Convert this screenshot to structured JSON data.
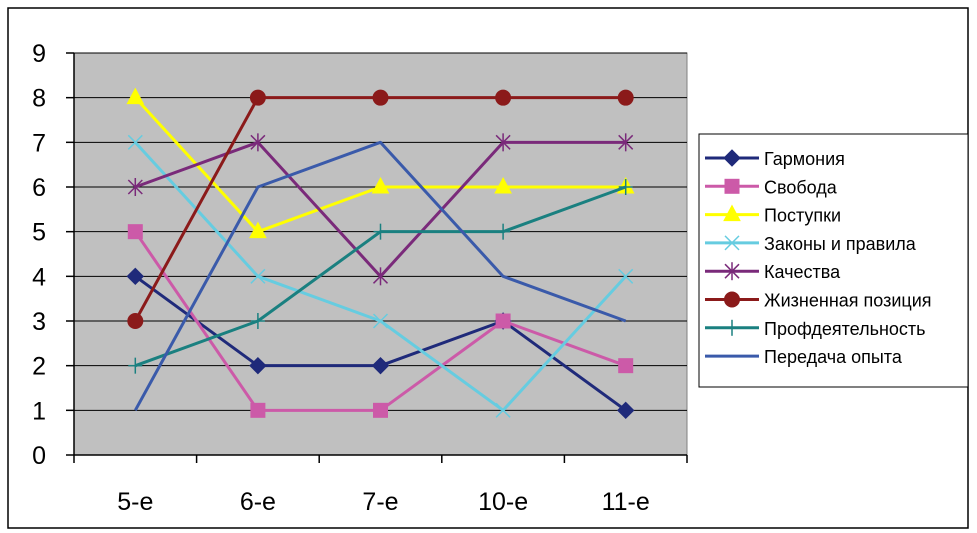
{
  "chart_data": {
    "type": "line",
    "title": "",
    "xlabel": "",
    "ylabel": "",
    "categories": [
      "5-е",
      "6-е",
      "7-е",
      "10-е",
      "11-е"
    ],
    "ylim": [
      0,
      9
    ],
    "y_ticks": [
      "0",
      "1",
      "2",
      "3",
      "4",
      "5",
      "6",
      "7",
      "8",
      "9"
    ],
    "grid": true,
    "plot_background": "#c0c0c0",
    "legend_position": "right",
    "series": [
      {
        "name": "Гармония",
        "values": [
          4,
          2,
          2,
          3,
          1
        ],
        "color": "#1f2a7a",
        "marker": "diamond"
      },
      {
        "name": "Свобода",
        "values": [
          5,
          1,
          1,
          3,
          2
        ],
        "color": "#cc5aa8",
        "marker": "square"
      },
      {
        "name": "Поступки",
        "values": [
          8,
          5,
          6,
          6,
          6
        ],
        "color": "#ffff00",
        "marker": "triangle"
      },
      {
        "name": "Законы и правила",
        "values": [
          7,
          4,
          3,
          1,
          4
        ],
        "color": "#66cce0",
        "marker": "x"
      },
      {
        "name": "Качества",
        "values": [
          6,
          7,
          4,
          7,
          7
        ],
        "color": "#7a2a7a",
        "marker": "star"
      },
      {
        "name": "Жизненная позиция",
        "values": [
          3,
          8,
          8,
          8,
          8
        ],
        "color": "#8b1a1a",
        "marker": "circle"
      },
      {
        "name": "Профдеятельность",
        "values": [
          2,
          3,
          5,
          5,
          6
        ],
        "color": "#1a8080",
        "marker": "plus"
      },
      {
        "name": "Передача опыта",
        "values": [
          1,
          6,
          7,
          4,
          3
        ],
        "color": "#3a5aaa",
        "marker": "none"
      }
    ]
  }
}
